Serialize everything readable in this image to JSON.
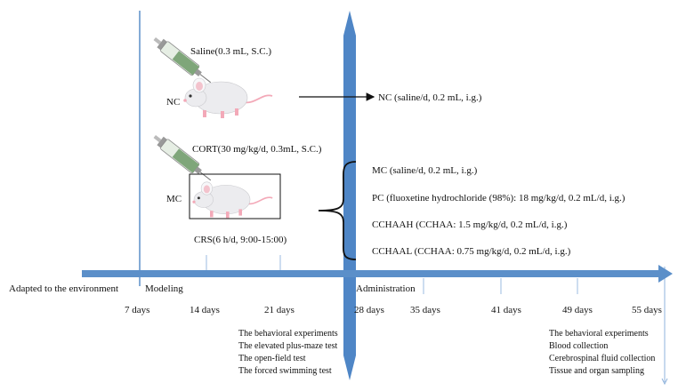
{
  "colors": {
    "timeline_blue": "#5b8fc9",
    "divider_blue": "#4f86c6",
    "text": "#111111",
    "mouse_body": "#ececef",
    "mouse_pink": "#f3a9b8",
    "syringe_green": "#7fa67a"
  },
  "groups": {
    "nc": {
      "injection": "Saline(0.3 mL, S.C.)",
      "label": "NC",
      "outcome": "NC (saline/d, 0.2 mL, i.g.)"
    },
    "mc": {
      "injection": "CORT(30 mg/kg/d, 0.3mL, S.C.)",
      "label": "MC",
      "stress": "CRS(6 h/d, 9:00-15:00)"
    }
  },
  "treatments": [
    "MC (saline/d, 0.2 mL, i.g.)",
    "PC (fluoxetine hydrochloride (98%): 18 mg/kg/d, 0.2 mL/d, i.g.)",
    "CCHAAH (CCHAA: 1.5 mg/kg/d, 0.2 mL/d, i.g.)",
    "CCHAAL (CCHAA: 0.75 mg/kg/d, 0.2 mL/d, i.g.)"
  ],
  "phases": {
    "adapt": "Adapted to the environment",
    "modeling": "Modeling",
    "administration": "Administration"
  },
  "days": [
    "7 days",
    "14 days",
    "21 days",
    "28 days",
    "35 days",
    "41 days",
    "49 days",
    "55 days"
  ],
  "tests_day21": {
    "title": "The behavioral experiments",
    "items": [
      "The elevated plus-maze test",
      "The open-field test",
      "The forced swimming test"
    ]
  },
  "tests_day55": {
    "title": "The behavioral experiments",
    "items": [
      "Blood collection",
      "Cerebrospinal fluid collection",
      "Tissue and organ sampling"
    ]
  }
}
